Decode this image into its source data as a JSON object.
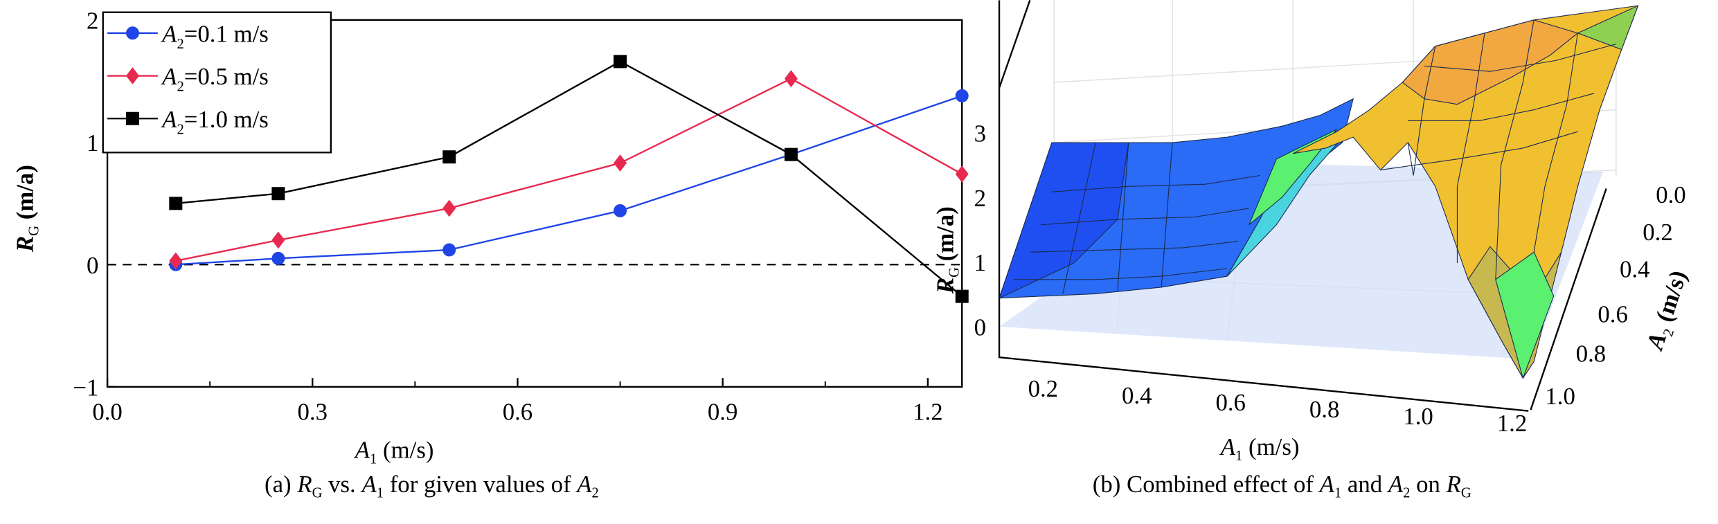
{
  "chart_data": [
    {
      "type": "line",
      "title": "",
      "caption": {
        "prefix": "(a) ",
        "r": "R",
        "r_sub": "G",
        "mid": " vs. ",
        "a1": "A",
        "a1_sub": "1",
        "rest": " for given values of ",
        "a2": "A",
        "a2_sub": "2"
      },
      "xlabel": {
        "sym": "A",
        "sub": "1",
        "unit": " (m/s)"
      },
      "ylabel": {
        "sym": "R",
        "sub": "G",
        "unit": " (m/a)"
      },
      "xlim": [
        0,
        1.25
      ],
      "ylim": [
        -1,
        2
      ],
      "xticks": [
        "0.0",
        "0.3",
        "0.6",
        "0.9",
        "1.2"
      ],
      "yticks": [
        "−1",
        "0",
        "1",
        "2"
      ],
      "reference_line": {
        "y": 0,
        "style": "dashed"
      },
      "legend_position": "top-left",
      "x": [
        0.1,
        0.25,
        0.5,
        0.75,
        1.0,
        1.25
      ],
      "series": [
        {
          "name": "=0.1 m/s",
          "sym": "A",
          "sub": "2",
          "color": "#1f45e6",
          "marker": "circle",
          "values": [
            0.0,
            0.05,
            0.12,
            0.44,
            0.9,
            1.38
          ]
        },
        {
          "name": "=0.5 m/s",
          "sym": "A",
          "sub": "2",
          "color": "#e8294f",
          "marker": "diamond",
          "values": [
            0.03,
            0.2,
            0.46,
            0.83,
            1.52,
            0.74
          ]
        },
        {
          "name": "=1.0 m/s",
          "sym": "A",
          "sub": "2",
          "color": "#000000",
          "marker": "square",
          "values": [
            0.5,
            0.58,
            0.88,
            1.66,
            0.9,
            -0.26
          ]
        }
      ]
    },
    {
      "type": "surface",
      "caption": {
        "prefix": "(b) Combined effect of ",
        "a1": "A",
        "a1_sub": "1",
        "mid": " and ",
        "a2": "A",
        "a2_sub": "2",
        "rest": " on ",
        "r": "R",
        "r_sub": "G"
      },
      "xlabel": {
        "sym": "A",
        "sub": "1",
        "unit": " (m/s)"
      },
      "ylabel": {
        "sym": "A",
        "sub": "2",
        "unit": " (m/s)"
      },
      "zlabel": {
        "sym": "R",
        "sub": "G",
        "unit": " (m/a)"
      },
      "xticks": [
        "0.2",
        "0.4",
        "0.6",
        "0.8",
        "1.0",
        "1.2"
      ],
      "yticks": [
        "0.0",
        "0.2",
        "0.4",
        "0.6",
        "0.8",
        "1.0"
      ],
      "zticks": [
        "0",
        "1",
        "2",
        "3"
      ],
      "colors": {
        "low": "#1f4ff0",
        "mid": "#5cf070",
        "high": "#f0b030"
      }
    }
  ]
}
